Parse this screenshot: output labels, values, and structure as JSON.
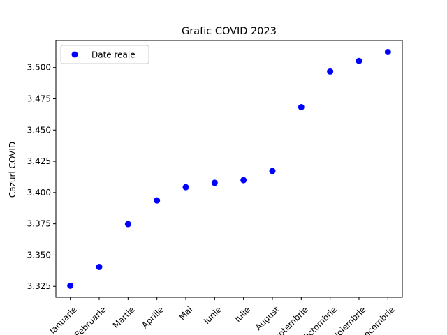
{
  "chart_data": {
    "type": "scatter",
    "title": "Grafic COVID 2023",
    "xlabel": "",
    "ylabel": "Cazuri COVID",
    "categories": [
      "Ianuarie",
      "Februarie",
      "Martie",
      "Aprilie",
      "Mai",
      "Iunie",
      "Iulie",
      "August",
      "Septembrie",
      "Octombrie",
      "Noiembrie",
      "Decembrie"
    ],
    "series": [
      {
        "name": "Date reale",
        "color": "#0000ff",
        "values": [
          3.3255,
          3.3405,
          3.3748,
          3.3937,
          3.4043,
          3.4078,
          3.4099,
          3.4172,
          3.4683,
          3.4968,
          3.5053,
          3.5124
        ]
      }
    ],
    "ylim": [
      3.3162,
      3.5216
    ],
    "yticks": [
      3.325,
      3.35,
      3.375,
      3.4,
      3.425,
      3.45,
      3.475,
      3.5
    ],
    "ytick_labels": [
      "3.325",
      "3.350",
      "3.375",
      "3.400",
      "3.425",
      "3.450",
      "3.475",
      "3.500"
    ],
    "grid": false,
    "legend": "top-left"
  }
}
